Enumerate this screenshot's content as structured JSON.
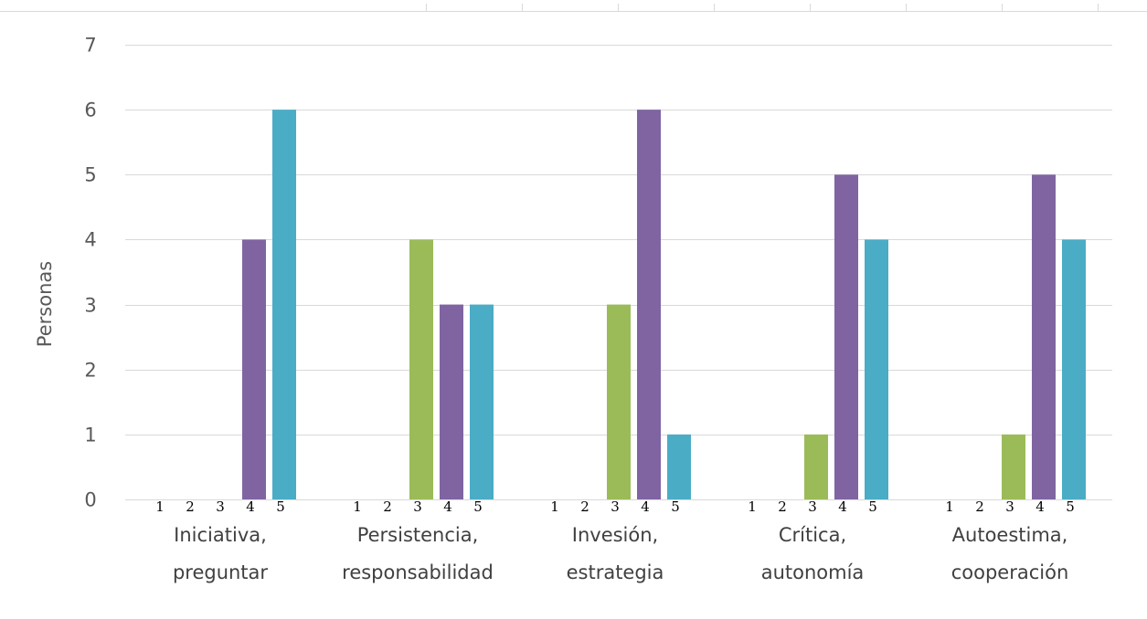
{
  "colors": {
    "level_3": "#9bbb59",
    "level_4": "#8064a2",
    "level_5": "#4bacc6",
    "grid": "#d9d9d9",
    "axis_text": "#595959"
  },
  "chart_data": {
    "type": "bar",
    "title": "",
    "xlabel": "",
    "ylabel": "Personas",
    "ylim": [
      0,
      7
    ],
    "yticks": [
      "0",
      "1",
      "2",
      "3",
      "4",
      "5",
      "6",
      "7"
    ],
    "grid": true,
    "legend": "none",
    "groups": [
      {
        "label_lines": [
          "Iniciativa,",
          "preguntar"
        ]
      },
      {
        "label_lines": [
          "Persistencia,",
          "responsabilidad"
        ]
      },
      {
        "label_lines": [
          "Invesión,",
          "estrategia"
        ]
      },
      {
        "label_lines": [
          "Crítica,",
          "autonomía"
        ]
      },
      {
        "label_lines": [
          "Autoestima,",
          "cooperación"
        ]
      }
    ],
    "levels": [
      "1",
      "2",
      "3",
      "4",
      "5"
    ],
    "series": [
      {
        "level": "1",
        "values": [
          0,
          0,
          0,
          0,
          0
        ]
      },
      {
        "level": "2",
        "values": [
          0,
          0,
          0,
          0,
          0
        ]
      },
      {
        "level": "3",
        "values": [
          0,
          4,
          3,
          1,
          1
        ]
      },
      {
        "level": "4",
        "values": [
          4,
          3,
          6,
          5,
          5
        ]
      },
      {
        "level": "5",
        "values": [
          6,
          3,
          1,
          4,
          4
        ]
      }
    ]
  }
}
